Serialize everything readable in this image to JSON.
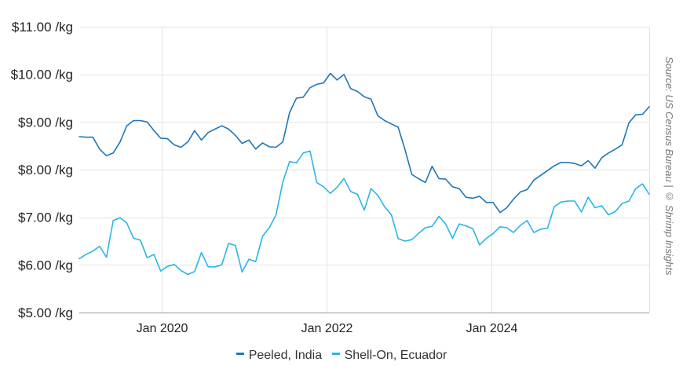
{
  "source_text": "Source: US Census Bureau | © Shrimp Insights",
  "chart_data": {
    "type": "line",
    "title": "",
    "xlabel": "",
    "ylabel": "",
    "ylim": [
      5,
      11
    ],
    "y_ticks": [
      5,
      6,
      7,
      8,
      9,
      10,
      11
    ],
    "y_tick_labels": [
      "$5.00 /kg",
      "$6.00 /kg",
      "$7.00 /kg",
      "$8.00 /kg",
      "$9.00 /kg",
      "$10.00 /kg",
      "$11.00 /kg"
    ],
    "x_ticks": [
      "2020-01",
      "2022-01",
      "2024-01"
    ],
    "x_tick_labels": [
      "Jan 2020",
      "Jan 2022",
      "Jan 2024"
    ],
    "x_range": [
      "2019-01",
      "2025-12"
    ],
    "grid": true,
    "legend_position": "bottom",
    "series": [
      {
        "name": "Peeled, India",
        "color": "#1f77b4",
        "values": [
          8.69,
          8.68,
          8.68,
          8.43,
          8.29,
          8.35,
          8.58,
          8.92,
          9.03,
          9.03,
          9.0,
          8.82,
          8.66,
          8.65,
          8.52,
          8.47,
          8.58,
          8.82,
          8.62,
          8.78,
          8.85,
          8.92,
          8.85,
          8.72,
          8.55,
          8.62,
          8.43,
          8.56,
          8.48,
          8.47,
          8.58,
          9.2,
          9.5,
          9.52,
          9.72,
          9.79,
          9.82,
          10.02,
          9.88,
          10.0,
          9.7,
          9.64,
          9.53,
          9.48,
          9.13,
          9.03,
          8.96,
          8.89,
          8.42,
          7.9,
          7.81,
          7.73,
          8.07,
          7.81,
          7.8,
          7.64,
          7.6,
          7.42,
          7.4,
          7.44,
          7.31,
          7.31,
          7.1,
          7.2,
          7.38,
          7.53,
          7.58,
          7.78,
          7.88,
          7.98,
          8.08,
          8.15,
          8.15,
          8.13,
          8.08,
          8.19,
          8.03,
          8.25,
          8.35,
          8.43,
          8.52,
          8.98,
          9.15,
          9.16,
          9.32
        ]
      },
      {
        "name": "Shell-On, Ecuador",
        "color": "#29b6e6",
        "values": [
          6.13,
          6.22,
          6.29,
          6.39,
          6.16,
          6.93,
          6.99,
          6.88,
          6.56,
          6.52,
          6.15,
          6.22,
          5.87,
          5.97,
          6.01,
          5.88,
          5.8,
          5.86,
          6.26,
          5.96,
          5.96,
          6.0,
          6.45,
          6.41,
          5.85,
          6.12,
          6.07,
          6.6,
          6.78,
          7.05,
          7.74,
          8.17,
          8.14,
          8.35,
          8.39,
          7.73,
          7.64,
          7.5,
          7.63,
          7.81,
          7.54,
          7.48,
          7.15,
          7.6,
          7.46,
          7.22,
          7.05,
          6.55,
          6.5,
          6.53,
          6.66,
          6.78,
          6.81,
          7.02,
          6.86,
          6.56,
          6.86,
          6.82,
          6.76,
          6.42,
          6.56,
          6.66,
          6.8,
          6.78,
          6.68,
          6.83,
          6.93,
          6.68,
          6.75,
          6.77,
          7.22,
          7.32,
          7.34,
          7.34,
          7.11,
          7.42,
          7.2,
          7.24,
          7.05,
          7.12,
          7.29,
          7.34,
          7.6,
          7.7,
          7.48
        ]
      }
    ]
  }
}
